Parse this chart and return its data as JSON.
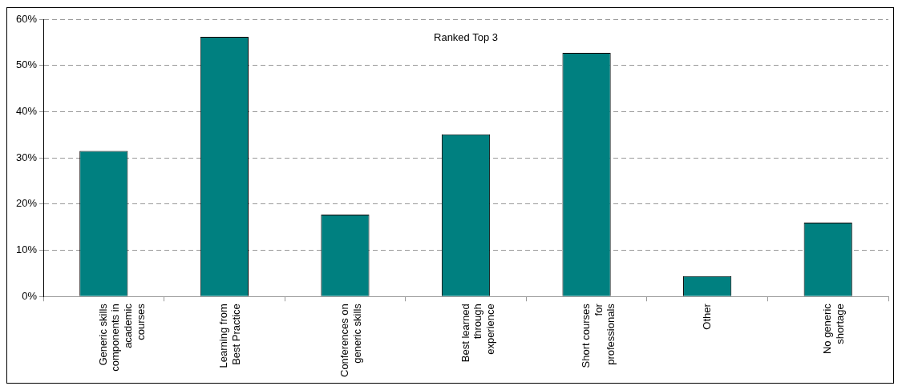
{
  "chart_data": {
    "type": "bar",
    "categories": [
      "Generic skills components in academic courses",
      "Learning from Best Practice",
      "Conferences on generic skills",
      "Best learned through experience",
      "Short courses for professionals",
      "Other",
      "No generic shortage"
    ],
    "values": [
      31.5,
      56.2,
      17.7,
      35.1,
      52.7,
      4.4,
      16.0
    ],
    "color": "#008080",
    "ylim": [
      0,
      60
    ],
    "yticks": [
      {
        "value": 0,
        "label": "0%"
      },
      {
        "value": 10,
        "label": "10%"
      },
      {
        "value": 20,
        "label": "20%"
      },
      {
        "value": 30,
        "label": "30%"
      },
      {
        "value": 40,
        "label": "40%"
      },
      {
        "value": 50,
        "label": "50%"
      },
      {
        "value": 60,
        "label": "60%"
      }
    ],
    "grid": "y",
    "annotations": [
      "Ranked Top 3"
    ]
  }
}
